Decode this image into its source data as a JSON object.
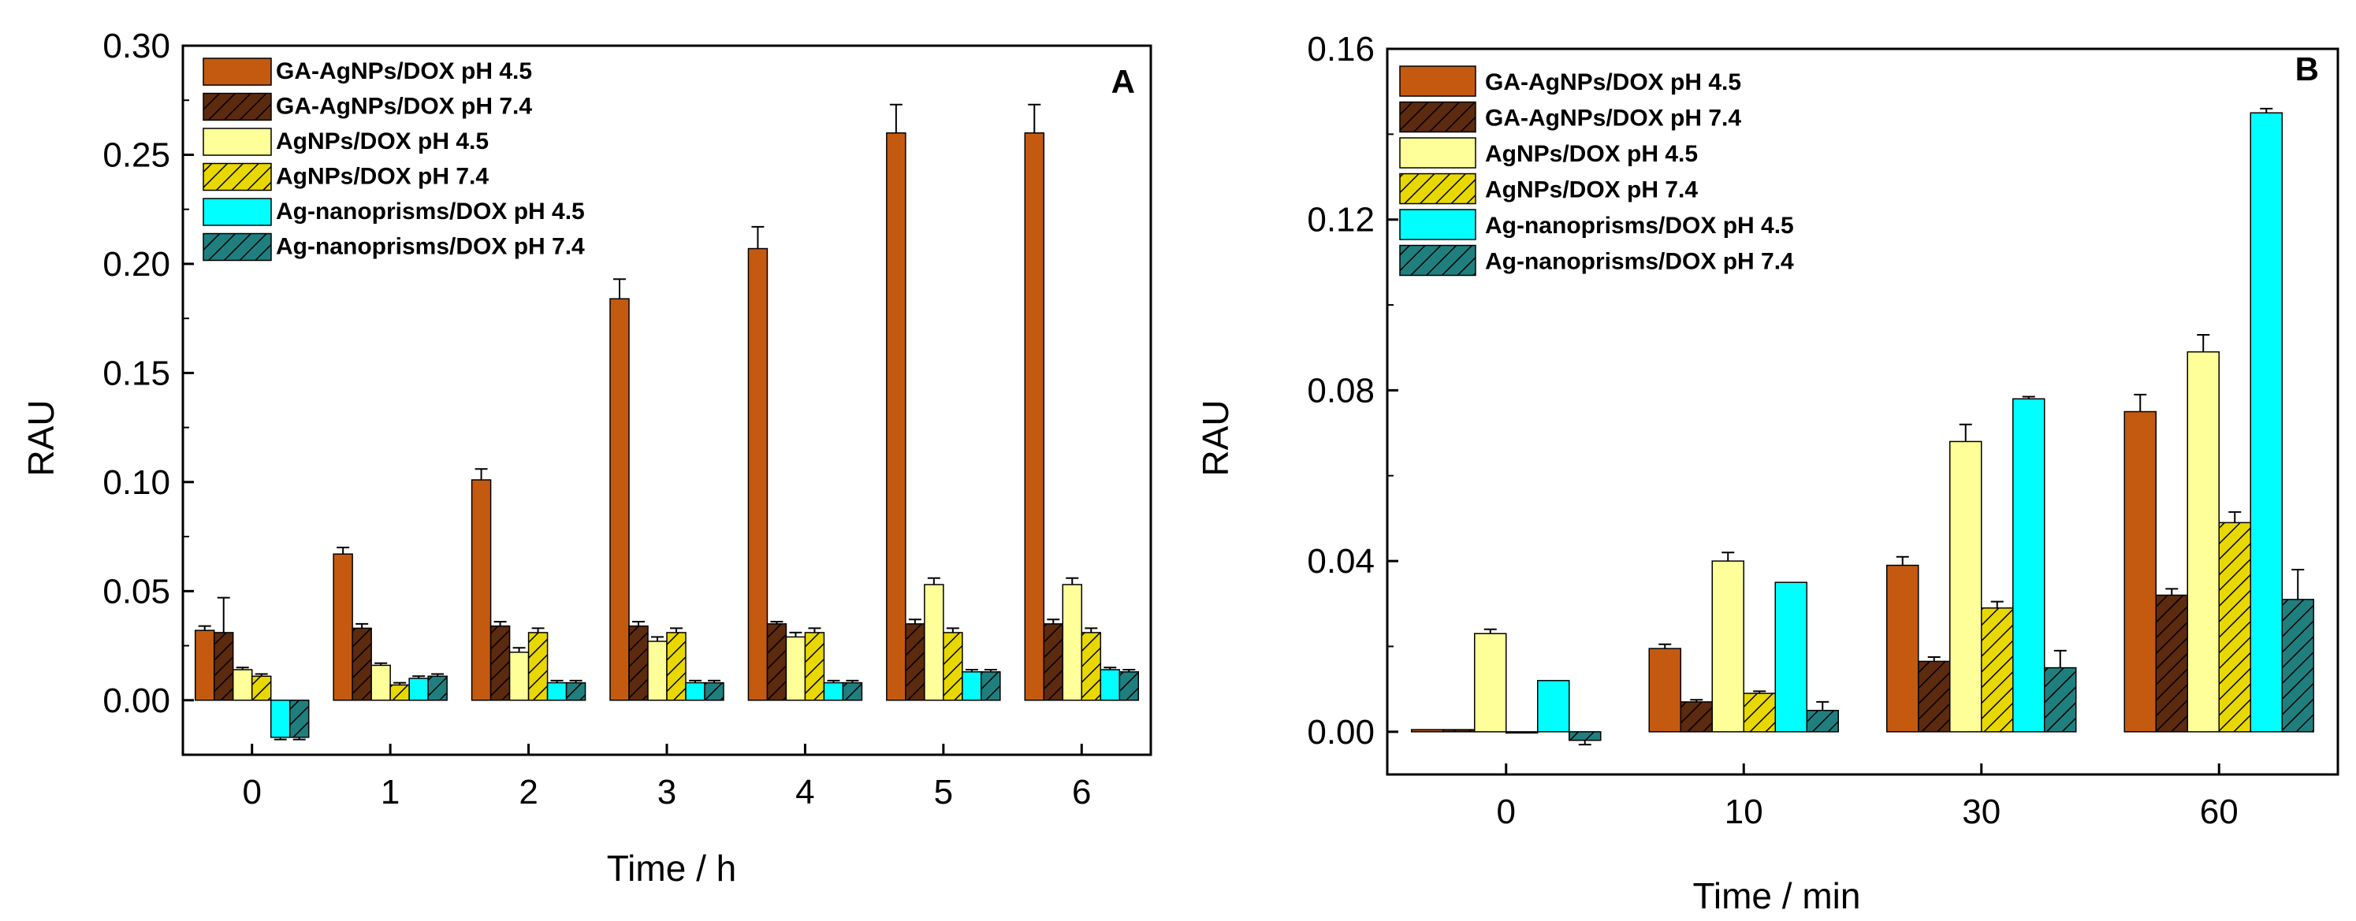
{
  "series_colors": [
    "#c45a10",
    "#5c2a0e",
    "#ffff99",
    "#e8d800",
    "#00ffff",
    "#1f7f7f"
  ],
  "chart_data": [
    {
      "type": "bar",
      "panel_label": "A",
      "xlabel": "Time / h",
      "ylabel": "RAU",
      "categories": [
        "0",
        "1",
        "2",
        "3",
        "4",
        "5",
        "6"
      ],
      "ylim": [
        -0.025,
        0.3
      ],
      "yticks": [
        "0.00",
        "0.05",
        "0.10",
        "0.15",
        "0.20",
        "0.25",
        "0.30"
      ],
      "legend_position": "top-left",
      "series": [
        {
          "name": "GA-AgNPs/DOX pH 4.5",
          "color": "#c45a10",
          "hatched": false,
          "values": [
            0.032,
            0.067,
            0.101,
            0.184,
            0.207,
            0.26,
            0.26
          ],
          "errors": [
            0.002,
            0.003,
            0.005,
            0.009,
            0.01,
            0.013,
            0.013
          ]
        },
        {
          "name": "GA-AgNPs/DOX pH 7.4",
          "color": "#5c2a0e",
          "hatched": true,
          "values": [
            0.031,
            0.033,
            0.034,
            0.034,
            0.035,
            0.035,
            0.035
          ],
          "errors": [
            0.016,
            0.002,
            0.002,
            0.002,
            0.001,
            0.002,
            0.002
          ]
        },
        {
          "name": "AgNPs/DOX pH 4.5",
          "color": "#ffff99",
          "hatched": false,
          "values": [
            0.014,
            0.016,
            0.022,
            0.027,
            0.029,
            0.053,
            0.053
          ],
          "errors": [
            0.001,
            0.001,
            0.002,
            0.002,
            0.002,
            0.003,
            0.003
          ]
        },
        {
          "name": "AgNPs/DOX pH 7.4",
          "color": "#e8d800",
          "hatched": true,
          "values": [
            0.011,
            0.007,
            0.031,
            0.031,
            0.031,
            0.031,
            0.031
          ],
          "errors": [
            0.001,
            0.001,
            0.002,
            0.002,
            0.002,
            0.002,
            0.002
          ]
        },
        {
          "name": "Ag-nanoprisms/DOX pH 4.5",
          "color": "#00ffff",
          "hatched": false,
          "values": [
            -0.017,
            0.01,
            0.008,
            0.008,
            0.008,
            0.013,
            0.014
          ],
          "errors": [
            0.001,
            0.001,
            0.001,
            0.001,
            0.001,
            0.001,
            0.001
          ]
        },
        {
          "name": "Ag-nanoprisms/DOX pH 7.4",
          "color": "#1f7f7f",
          "hatched": true,
          "values": [
            -0.017,
            0.011,
            0.008,
            0.008,
            0.008,
            0.013,
            0.013
          ],
          "errors": [
            0.001,
            0.001,
            0.001,
            0.001,
            0.001,
            0.001,
            0.001
          ]
        }
      ]
    },
    {
      "type": "bar",
      "panel_label": "B",
      "xlabel": "Time / min",
      "ylabel": "RAU",
      "categories": [
        "0",
        "10",
        "30",
        "60"
      ],
      "ylim": [
        -0.01,
        0.16
      ],
      "yticks": [
        "0.00",
        "0.04",
        "0.08",
        "0.12",
        "0.16"
      ],
      "legend_position": "top-left",
      "series": [
        {
          "name": "GA-AgNPs/DOX pH 4.5",
          "color": "#c45a10",
          "hatched": false,
          "values": [
            0.0005,
            0.0195,
            0.039,
            0.075
          ],
          "errors": [
            0.0,
            0.001,
            0.002,
            0.004
          ]
        },
        {
          "name": "GA-AgNPs/DOX pH 7.4",
          "color": "#5c2a0e",
          "hatched": true,
          "values": [
            0.0005,
            0.007,
            0.0165,
            0.032
          ],
          "errors": [
            0.0,
            0.0005,
            0.001,
            0.0015
          ]
        },
        {
          "name": "AgNPs/DOX pH 4.5",
          "color": "#ffff99",
          "hatched": false,
          "values": [
            0.023,
            0.04,
            0.068,
            0.089
          ],
          "errors": [
            0.001,
            0.002,
            0.004,
            0.004
          ]
        },
        {
          "name": "AgNPs/DOX pH 7.4",
          "color": "#e8d800",
          "hatched": true,
          "values": [
            0.0,
            0.009,
            0.029,
            0.049
          ],
          "errors": [
            0.0,
            0.0005,
            0.0015,
            0.0025
          ]
        },
        {
          "name": "Ag-nanoprisms/DOX pH 4.5",
          "color": "#00ffff",
          "hatched": false,
          "values": [
            0.012,
            0.035,
            0.078,
            0.145
          ],
          "errors": [
            0.0,
            0.0,
            0.0005,
            0.001
          ]
        },
        {
          "name": "Ag-nanoprisms/DOX pH 7.4",
          "color": "#1f7f7f",
          "hatched": true,
          "values": [
            -0.002,
            0.005,
            0.015,
            0.031
          ],
          "errors": [
            0.001,
            0.002,
            0.004,
            0.007
          ]
        }
      ]
    }
  ]
}
